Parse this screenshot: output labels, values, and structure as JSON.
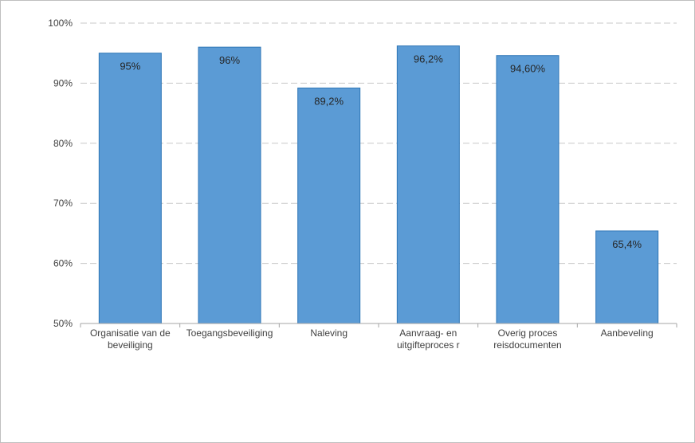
{
  "chart_data": {
    "type": "bar",
    "categories": [
      [
        "Organisatie van de",
        "beveiliging"
      ],
      [
        "Toegangsbeveiliging"
      ],
      [
        "Naleving"
      ],
      [
        "Aanvraag- en",
        "uitgifteproces r"
      ],
      [
        "Overig proces",
        "reisdocumenten"
      ],
      [
        "Aanbeveling"
      ]
    ],
    "values": [
      95,
      96,
      89.2,
      96.2,
      94.6,
      65.4
    ],
    "data_labels": [
      "95%",
      "96%",
      "89,2%",
      "96,2%",
      "94,60%",
      "65,4%"
    ],
    "ylim": [
      50,
      100
    ],
    "yticks": [
      50,
      60,
      70,
      80,
      90,
      100
    ],
    "ytick_labels": [
      "50%",
      "60%",
      "70%",
      "80%",
      "90%",
      "100%"
    ],
    "title": "",
    "xlabel": "",
    "ylabel": "",
    "grid": true,
    "colors": {
      "bar_fill": "#5b9bd5",
      "bar_stroke": "#2e75b6",
      "grid": "#c8c8c8",
      "axis": "#a6a6a6"
    }
  }
}
